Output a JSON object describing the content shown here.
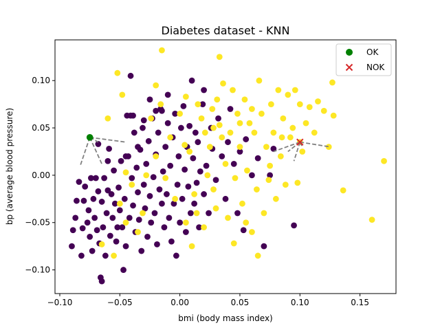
{
  "chart_data": {
    "type": "scatter",
    "title": "Diabetes dataset - KNN",
    "xlabel": "bmi (body mass index)",
    "ylabel": "bp (average blood pressure)",
    "xlim": [
      -0.104,
      0.18
    ],
    "ylim": [
      -0.125,
      0.143
    ],
    "xticks": [
      -0.1,
      -0.05,
      0.0,
      0.05,
      0.1,
      0.15
    ],
    "xtick_labels": [
      "−0.10",
      "−0.05",
      "0.00",
      "0.05",
      "0.10",
      "0.15"
    ],
    "yticks": [
      -0.1,
      -0.05,
      0.0,
      0.05,
      0.1
    ],
    "ytick_labels": [
      "−0.10",
      "−0.05",
      "0.00",
      "0.05",
      "0.10"
    ],
    "grid": false,
    "legend_position": "top-right",
    "colors": {
      "class_0": "#440154",
      "class_1": "#fde725",
      "ok_marker": "#008000",
      "nok_marker": "#d62728",
      "neighbor_line": "#808080"
    },
    "series": [
      {
        "class": 0,
        "points": [
          [
            -0.09,
            -0.075
          ],
          [
            -0.089,
            -0.058
          ],
          [
            -0.087,
            -0.045
          ],
          [
            -0.086,
            -0.027
          ],
          [
            -0.084,
            -0.007
          ],
          [
            -0.082,
            -0.085
          ],
          [
            -0.081,
            -0.056
          ],
          [
            -0.08,
            -0.027
          ],
          [
            -0.079,
            -0.012
          ],
          [
            -0.077,
            -0.05
          ],
          [
            -0.076,
            -0.037
          ],
          [
            -0.075,
            -0.065
          ],
          [
            -0.074,
            -0.003
          ],
          [
            -0.073,
            -0.08
          ],
          [
            -0.072,
            -0.025
          ],
          [
            -0.071,
            -0.045
          ],
          [
            -0.07,
            -0.003
          ],
          [
            -0.069,
            -0.058
          ],
          [
            -0.068,
            0.033
          ],
          [
            -0.068,
            -0.017
          ],
          [
            -0.067,
            -0.072
          ],
          [
            -0.066,
            -0.108
          ],
          [
            -0.065,
            -0.112
          ],
          [
            -0.065,
            -0.028
          ],
          [
            -0.064,
            -0.055
          ],
          [
            -0.063,
            -0.003
          ],
          [
            -0.062,
            -0.085
          ],
          [
            -0.061,
            -0.04
          ],
          [
            -0.06,
            -0.016
          ],
          [
            -0.059,
            0.028
          ],
          [
            -0.058,
            -0.064
          ],
          [
            -0.057,
            -0.02
          ],
          [
            -0.056,
            -0.045
          ],
          [
            -0.055,
            0.005
          ],
          [
            -0.054,
            -0.03
          ],
          [
            -0.053,
            -0.07
          ],
          [
            -0.052,
            -0.055
          ],
          [
            -0.051,
            -0.013
          ],
          [
            -0.05,
            -0.037
          ],
          [
            -0.049,
            0.015
          ],
          [
            -0.048,
            -0.055
          ],
          [
            -0.047,
            -0.1
          ],
          [
            -0.046,
            -0.025
          ],
          [
            -0.045,
            -0.075
          ],
          [
            -0.044,
            0.063
          ],
          [
            -0.043,
            0.02
          ],
          [
            -0.042,
            -0.045
          ],
          [
            -0.041,
            0.105
          ],
          [
            -0.04,
            -0.003
          ],
          [
            -0.039,
            -0.032
          ],
          [
            -0.038,
            0.045
          ],
          [
            -0.037,
            -0.06
          ],
          [
            -0.036,
            0.008
          ],
          [
            -0.035,
            -0.018
          ],
          [
            -0.034,
            -0.047
          ],
          [
            -0.033,
            0.027
          ],
          [
            -0.032,
            -0.08
          ],
          [
            -0.031,
            0.05
          ],
          [
            -0.03,
            -0.01
          ],
          [
            -0.029,
            -0.035
          ],
          [
            -0.028,
            0.012
          ],
          [
            -0.027,
            -0.065
          ],
          [
            -0.026,
            0.036
          ],
          [
            -0.025,
            -0.022
          ],
          [
            -0.024,
            -0.05
          ],
          [
            -0.023,
            0.06
          ],
          [
            -0.022,
            -0.002
          ],
          [
            -0.021,
            -0.04
          ],
          [
            -0.02,
            0.022
          ],
          [
            -0.019,
            -0.073
          ],
          [
            -0.018,
            0.045
          ],
          [
            -0.017,
            -0.015
          ],
          [
            -0.016,
            0.07
          ],
          [
            -0.015,
            -0.03
          ],
          [
            -0.014,
            0.004
          ],
          [
            -0.013,
            -0.055
          ],
          [
            -0.012,
            0.03
          ],
          [
            -0.011,
            -0.02
          ],
          [
            -0.01,
            0.055
          ],
          [
            -0.009,
            -0.045
          ],
          [
            -0.008,
            0.01
          ],
          [
            -0.007,
            -0.07
          ],
          [
            -0.006,
            0.04
          ],
          [
            -0.005,
            -0.03
          ],
          [
            -0.004,
            0.065
          ],
          [
            -0.003,
            -0.085
          ],
          [
            -0.002,
            -0.01
          ],
          [
            -0.001,
            0.02
          ],
          [
            0.0,
            -0.05
          ],
          [
            0.001,
            0.05
          ],
          [
            0.002,
            -0.025
          ],
          [
            0.003,
            0.073
          ],
          [
            0.004,
            0.006
          ],
          [
            0.005,
            -0.06
          ],
          [
            0.006,
            0.03
          ],
          [
            0.007,
            -0.012
          ],
          [
            0.008,
            0.052
          ],
          [
            0.009,
            -0.04
          ],
          [
            0.01,
            0.1
          ],
          [
            0.011,
            0.018
          ],
          [
            0.012,
            -0.03
          ],
          [
            0.013,
            0.045
          ],
          [
            0.014,
            -0.008
          ],
          [
            0.015,
            0.035
          ],
          [
            0.016,
            -0.055
          ],
          [
            0.017,
            0.004
          ],
          [
            0.019,
            0.075
          ],
          [
            0.02,
            -0.02
          ],
          [
            0.022,
            0.01
          ],
          [
            0.024,
            -0.04
          ],
          [
            0.026,
            0.05
          ],
          [
            0.027,
            0.028
          ],
          [
            0.03,
            -0.005
          ],
          [
            0.032,
            0.06
          ],
          [
            0.035,
            0.02
          ],
          [
            0.038,
            -0.025
          ],
          [
            0.04,
            0.035
          ],
          [
            0.042,
            0.07
          ],
          [
            0.045,
            0.012
          ],
          [
            0.048,
            -0.04
          ],
          [
            0.05,
            0.025
          ],
          [
            0.053,
            -0.058
          ],
          [
            0.055,
            0.038
          ],
          [
            0.06,
            0.0
          ],
          [
            0.065,
            0.018
          ],
          [
            0.07,
            -0.075
          ],
          [
            0.075,
            0.0
          ],
          [
            0.078,
            0.028
          ],
          [
            0.095,
            -0.053
          ],
          [
            0.02,
            0.09
          ],
          [
            -0.039,
            0.063
          ],
          [
            -0.041,
            0.063
          ],
          [
            -0.045,
            0.02
          ],
          [
            -0.06,
            0.015
          ],
          [
            -0.035,
            0.03
          ],
          [
            -0.03,
            0.058
          ],
          [
            -0.025,
            0.08
          ],
          [
            -0.02,
            0.068
          ],
          [
            -0.015,
            0.068
          ],
          [
            -0.01,
            0.085
          ]
        ]
      },
      {
        "class": 1,
        "points": [
          [
            -0.052,
            0.108
          ],
          [
            -0.015,
            0.132
          ],
          [
            0.033,
            0.125
          ],
          [
            -0.045,
            0.003
          ],
          [
            -0.04,
            -0.01
          ],
          [
            -0.035,
            -0.06
          ],
          [
            -0.031,
            -0.04
          ],
          [
            -0.028,
            0.0
          ],
          [
            -0.024,
            0.06
          ],
          [
            -0.02,
            0.02
          ],
          [
            -0.016,
            0.075
          ],
          [
            -0.012,
            -0.003
          ],
          [
            -0.008,
            0.04
          ],
          [
            -0.004,
            -0.025
          ],
          [
            0.0,
            0.065
          ],
          [
            0.004,
            0.032
          ],
          [
            0.008,
            0.025
          ],
          [
            0.012,
            -0.02
          ],
          [
            0.014,
            -0.04
          ],
          [
            0.018,
            0.06
          ],
          [
            0.021,
            0.045
          ],
          [
            0.023,
            0.0
          ],
          [
            0.025,
            0.03
          ],
          [
            0.028,
            -0.015
          ],
          [
            0.031,
            0.08
          ],
          [
            0.033,
            0.053
          ],
          [
            0.036,
            0.097
          ],
          [
            0.038,
            0.012
          ],
          [
            0.04,
            -0.045
          ],
          [
            0.042,
            0.045
          ],
          [
            0.044,
            0.09
          ],
          [
            0.046,
            -0.003
          ],
          [
            0.048,
            0.065
          ],
          [
            0.05,
            0.03
          ],
          [
            0.052,
            -0.03
          ],
          [
            0.054,
            0.08
          ],
          [
            0.056,
            0.005
          ],
          [
            0.058,
            0.055
          ],
          [
            0.06,
            -0.06
          ],
          [
            0.062,
            0.045
          ],
          [
            0.064,
            -0.015
          ],
          [
            0.066,
            0.1
          ],
          [
            0.068,
            0.065
          ],
          [
            0.07,
            -0.04
          ],
          [
            0.072,
            0.03
          ],
          [
            0.074,
            -0.005
          ],
          [
            0.076,
            0.075
          ],
          [
            0.078,
            0.045
          ],
          [
            0.08,
            -0.025
          ],
          [
            0.082,
            0.09
          ],
          [
            0.084,
            0.02
          ],
          [
            0.086,
            0.06
          ],
          [
            0.088,
            -0.01
          ],
          [
            0.09,
            0.085
          ],
          [
            0.092,
            0.04
          ],
          [
            0.094,
            0.05
          ],
          [
            0.096,
            0.09
          ],
          [
            0.098,
            -0.008
          ],
          [
            0.1,
            0.075
          ],
          [
            0.102,
            0.025
          ],
          [
            0.105,
            0.055
          ],
          [
            0.108,
            0.072
          ],
          [
            0.112,
            0.045
          ],
          [
            0.115,
            0.078
          ],
          [
            0.12,
            0.068
          ],
          [
            0.124,
            0.03
          ],
          [
            0.127,
            0.098
          ],
          [
            0.128,
            0.063
          ],
          [
            0.136,
            -0.016
          ],
          [
            0.16,
            -0.047
          ],
          [
            0.17,
            0.015
          ],
          [
            -0.065,
            -0.073
          ],
          [
            -0.055,
            -0.085
          ],
          [
            -0.05,
            -0.03
          ],
          [
            -0.045,
            -0.05
          ],
          [
            0.005,
            -0.05
          ],
          [
            0.01,
            -0.075
          ],
          [
            0.02,
            -0.055
          ],
          [
            0.03,
            -0.035
          ],
          [
            0.045,
            -0.072
          ],
          [
            0.055,
            -0.05
          ],
          [
            0.065,
            -0.085
          ],
          [
            0.015,
            0.075
          ],
          [
            0.028,
            0.05
          ],
          [
            0.06,
            0.07
          ],
          [
            0.035,
            0.04
          ],
          [
            0.05,
            0.055
          ],
          [
            0.075,
            0.01
          ],
          [
            0.085,
            0.04
          ],
          [
            0.1,
            0.035
          ],
          [
            -0.06,
            0.06
          ],
          [
            -0.048,
            0.085
          ],
          [
            -0.02,
            0.095
          ],
          [
            0.005,
            0.083
          ],
          [
            0.027,
            0.07
          ]
        ]
      }
    ],
    "queries": [
      {
        "label": "OK",
        "marker": "circle",
        "point": [
          -0.075,
          0.04
        ],
        "neighbors": [
          [
            -0.07,
            0.038
          ],
          [
            -0.068,
            0.035
          ],
          [
            -0.045,
            0.035
          ],
          [
            -0.083,
            0.01
          ],
          [
            -0.065,
            0.012
          ]
        ]
      },
      {
        "label": "NOK",
        "marker": "x",
        "point": [
          0.1,
          0.035
        ],
        "neighbors": [
          [
            0.078,
            0.025
          ],
          [
            0.09,
            0.025
          ],
          [
            0.095,
            0.015
          ],
          [
            0.102,
            0.03
          ],
          [
            0.125,
            0.03
          ]
        ]
      }
    ],
    "legend": [
      {
        "label": "OK",
        "marker": "circle",
        "color": "#008000"
      },
      {
        "label": "NOK",
        "marker": "x",
        "color": "#d62728"
      }
    ]
  }
}
